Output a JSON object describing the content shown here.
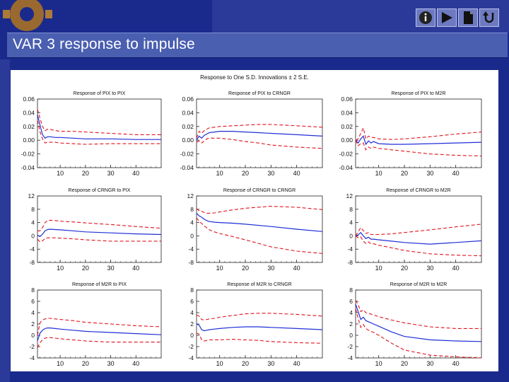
{
  "slide": {
    "title": "VAR 3 response to impulse",
    "nav_icons": [
      "info-icon",
      "play-icon",
      "document-icon",
      "return-icon"
    ],
    "colors": {
      "background": "#1a2a8c",
      "title_bar": "#4a5fb0",
      "response_line": "#1f2fd6",
      "band_line": "#e0141e"
    }
  },
  "chart_data": {
    "type": "line",
    "title": "Response to One S.D. Innovations ± 2 S.E.",
    "xticks": [
      "10",
      "20",
      "30",
      "40"
    ],
    "xlim": [
      1,
      50
    ],
    "panels": [
      {
        "title": "Response of PIX to PIX",
        "ylim": [
          -0.04,
          0.06
        ],
        "yticks": [
          "0.06",
          "0.04",
          "0.02",
          "0.00",
          "-0.02",
          "-0.04"
        ],
        "series": [
          {
            "role": "response",
            "x": [
              1,
              2,
              3,
              4,
              5,
              6,
              8,
              10,
              15,
              20,
              30,
              40,
              50
            ],
            "y": [
              0.037,
              0.022,
              0.008,
              0.003,
              0.005,
              0.005,
              0.004,
              0.004,
              0.003,
              0.002,
              0.002,
              0.001,
              0.001
            ]
          },
          {
            "role": "upper",
            "x": [
              1,
              2,
              3,
              4,
              5,
              6,
              8,
              10,
              15,
              20,
              30,
              40,
              50
            ],
            "y": [
              0.045,
              0.032,
              0.02,
              0.014,
              0.016,
              0.016,
              0.014,
              0.013,
              0.013,
              0.012,
              0.01,
              0.008,
              0.008
            ]
          },
          {
            "role": "lower",
            "x": [
              1,
              2,
              3,
              4,
              5,
              6,
              8,
              10,
              15,
              20,
              30,
              40,
              50
            ],
            "y": [
              0.029,
              0.012,
              0.002,
              -0.004,
              -0.003,
              -0.003,
              -0.003,
              -0.004,
              -0.005,
              -0.006,
              -0.005,
              -0.005,
              -0.005
            ]
          }
        ]
      },
      {
        "title": "Response of PIX to CRNGR",
        "ylim": [
          -0.04,
          0.06
        ],
        "yticks": [
          "0.06",
          "0.04",
          "0.02",
          "0.00",
          "-0.02",
          "-0.04"
        ],
        "series": [
          {
            "role": "response",
            "x": [
              1,
              2,
              3,
              4,
              5,
              6,
              8,
              10,
              15,
              20,
              25,
              30,
              40,
              50
            ],
            "y": [
              0.0,
              0.006,
              0.003,
              0.007,
              0.009,
              0.011,
              0.012,
              0.013,
              0.013,
              0.012,
              0.011,
              0.01,
              0.008,
              0.006
            ]
          },
          {
            "role": "upper",
            "x": [
              1,
              2,
              3,
              4,
              5,
              6,
              8,
              10,
              15,
              20,
              25,
              30,
              40,
              50
            ],
            "y": [
              0.003,
              0.013,
              0.01,
              0.014,
              0.016,
              0.018,
              0.019,
              0.02,
              0.021,
              0.022,
              0.023,
              0.023,
              0.021,
              0.019
            ]
          },
          {
            "role": "lower",
            "x": [
              1,
              2,
              3,
              4,
              5,
              6,
              8,
              10,
              15,
              20,
              25,
              30,
              40,
              50
            ],
            "y": [
              -0.003,
              -0.001,
              -0.004,
              -0.001,
              0.002,
              0.003,
              0.003,
              0.003,
              0.001,
              -0.002,
              -0.004,
              -0.007,
              -0.01,
              -0.012
            ]
          }
        ]
      },
      {
        "title": "Response of PIX to M2R",
        "ylim": [
          -0.04,
          0.06
        ],
        "yticks": [
          "0.06",
          "0.04",
          "0.02",
          "0.00",
          "-0.02",
          "-0.04"
        ],
        "series": [
          {
            "role": "response",
            "x": [
              1,
              2,
              3,
              4,
              5,
              6,
              7,
              8,
              10,
              15,
              20,
              30,
              40,
              50
            ],
            "y": [
              0.0,
              -0.004,
              0.002,
              0.006,
              -0.006,
              -0.001,
              -0.004,
              -0.002,
              -0.005,
              -0.006,
              -0.006,
              -0.005,
              -0.004,
              -0.003
            ]
          },
          {
            "role": "upper",
            "x": [
              1,
              2,
              3,
              4,
              5,
              6,
              7,
              8,
              10,
              15,
              20,
              30,
              40,
              50
            ],
            "y": [
              0.0,
              0.002,
              0.01,
              0.018,
              0.002,
              0.006,
              0.004,
              0.004,
              0.002,
              0.001,
              0.002,
              0.005,
              0.009,
              0.012
            ]
          },
          {
            "role": "lower",
            "x": [
              1,
              2,
              3,
              4,
              5,
              6,
              7,
              8,
              10,
              15,
              20,
              30,
              40,
              50
            ],
            "y": [
              0.0,
              -0.008,
              -0.005,
              -0.004,
              -0.014,
              -0.01,
              -0.012,
              -0.01,
              -0.012,
              -0.014,
              -0.016,
              -0.02,
              -0.022,
              -0.023
            ]
          }
        ]
      },
      {
        "title": "Response of CRNGR to PIX",
        "ylim": [
          -8,
          12
        ],
        "yticks": [
          "12",
          "8",
          "4",
          "0",
          "-4",
          "-8"
        ],
        "series": [
          {
            "role": "response",
            "x": [
              1,
              2,
              3,
              4,
              5,
              6,
              8,
              10,
              15,
              20,
              30,
              40,
              50
            ],
            "y": [
              0.2,
              -0.2,
              0.5,
              1.5,
              1.9,
              2.0,
              1.9,
              1.8,
              1.5,
              1.2,
              0.9,
              0.6,
              0.4
            ]
          },
          {
            "role": "upper",
            "x": [
              1,
              2,
              3,
              4,
              5,
              6,
              8,
              10,
              15,
              20,
              30,
              40,
              50
            ],
            "y": [
              1.5,
              1.5,
              2.5,
              4.0,
              4.6,
              4.7,
              4.6,
              4.4,
              4.2,
              3.9,
              3.4,
              2.8,
              2.3
            ]
          },
          {
            "role": "lower",
            "x": [
              1,
              2,
              3,
              4,
              5,
              6,
              8,
              10,
              15,
              20,
              30,
              40,
              50
            ],
            "y": [
              -1.0,
              -1.8,
              -1.5,
              -0.8,
              -0.6,
              -0.6,
              -0.6,
              -0.7,
              -0.9,
              -1.2,
              -1.6,
              -1.6,
              -1.6
            ]
          }
        ]
      },
      {
        "title": "Response of CRNGR to CRNGR",
        "ylim": [
          -8,
          12
        ],
        "yticks": [
          "12",
          "8",
          "4",
          "0",
          "-4",
          "-8"
        ],
        "series": [
          {
            "role": "response",
            "x": [
              1,
              2,
              3,
              4,
              5,
              6,
              8,
              10,
              15,
              20,
              30,
              40,
              50
            ],
            "y": [
              6.8,
              6.0,
              5.6,
              5.0,
              4.6,
              4.3,
              4.1,
              4.0,
              3.8,
              3.5,
              2.8,
              2.0,
              1.3
            ]
          },
          {
            "role": "upper",
            "x": [
              1,
              2,
              3,
              4,
              5,
              6,
              8,
              10,
              15,
              20,
              30,
              40,
              50
            ],
            "y": [
              8.2,
              7.6,
              7.4,
              7.0,
              6.8,
              6.8,
              6.9,
              7.2,
              7.8,
              8.3,
              8.9,
              8.6,
              7.9
            ]
          },
          {
            "role": "lower",
            "x": [
              1,
              2,
              3,
              4,
              5,
              6,
              8,
              10,
              15,
              20,
              30,
              40,
              50
            ],
            "y": [
              5.4,
              4.4,
              3.7,
              3.0,
              2.4,
              1.8,
              1.2,
              0.7,
              -0.2,
              -1.2,
              -3.3,
              -4.6,
              -5.3
            ]
          }
        ]
      },
      {
        "title": "Response of CRNGR to M2R",
        "ylim": [
          -8,
          12
        ],
        "yticks": [
          "12",
          "8",
          "4",
          "0",
          "-4",
          "-8"
        ],
        "series": [
          {
            "role": "response",
            "x": [
              1,
              2,
              3,
              4,
              5,
              6,
              7,
              8,
              10,
              15,
              20,
              30,
              40,
              50
            ],
            "y": [
              0.0,
              0.3,
              1.0,
              0.0,
              -0.8,
              -0.4,
              -1.0,
              -1.0,
              -1.2,
              -1.6,
              -2.0,
              -2.5,
              -2.0,
              -1.5
            ]
          },
          {
            "role": "upper",
            "x": [
              1,
              2,
              3,
              4,
              5,
              6,
              7,
              8,
              10,
              15,
              20,
              30,
              40,
              50
            ],
            "y": [
              0.0,
              1.2,
              2.5,
              1.6,
              0.7,
              1.0,
              0.4,
              0.4,
              0.4,
              0.6,
              1.0,
              1.8,
              2.7,
              3.5
            ]
          },
          {
            "role": "lower",
            "x": [
              1,
              2,
              3,
              4,
              5,
              6,
              7,
              8,
              10,
              15,
              20,
              30,
              40,
              50
            ],
            "y": [
              0.0,
              -0.6,
              -0.3,
              -1.6,
              -2.3,
              -1.8,
              -2.4,
              -2.4,
              -2.8,
              -3.6,
              -4.4,
              -5.4,
              -5.8,
              -6.0
            ]
          }
        ]
      },
      {
        "title": "Response of M2R to PIX",
        "ylim": [
          -4,
          8
        ],
        "yticks": [
          "8",
          "6",
          "4",
          "2",
          "0",
          "-2",
          "-4"
        ],
        "series": [
          {
            "role": "response",
            "x": [
              1,
              2,
              3,
              4,
              5,
              6,
              8,
              10,
              15,
              20,
              30,
              40,
              50
            ],
            "y": [
              -1.0,
              0.4,
              0.9,
              1.2,
              1.3,
              1.3,
              1.2,
              1.1,
              0.9,
              0.7,
              0.5,
              0.3,
              0.1
            ]
          },
          {
            "role": "upper",
            "x": [
              1,
              2,
              3,
              4,
              5,
              6,
              8,
              10,
              15,
              20,
              30,
              40,
              50
            ],
            "y": [
              0.0,
              2.2,
              2.7,
              2.9,
              3.0,
              3.0,
              2.9,
              2.8,
              2.6,
              2.3,
              2.0,
              1.7,
              1.5
            ]
          },
          {
            "role": "lower",
            "x": [
              1,
              2,
              3,
              4,
              5,
              6,
              8,
              10,
              15,
              20,
              30,
              40,
              50
            ],
            "y": [
              -2.2,
              -1.3,
              -0.8,
              -0.5,
              -0.4,
              -0.4,
              -0.5,
              -0.6,
              -0.8,
              -1.0,
              -1.2,
              -1.2,
              -1.2
            ]
          }
        ]
      },
      {
        "title": "Response of M2R to CRNGR",
        "ylim": [
          -4,
          8
        ],
        "yticks": [
          "8",
          "6",
          "4",
          "2",
          "0",
          "-2",
          "-4"
        ],
        "series": [
          {
            "role": "response",
            "x": [
              1,
              2,
              3,
              4,
              5,
              6,
              8,
              10,
              15,
              20,
              25,
              30,
              40,
              50
            ],
            "y": [
              2.0,
              1.8,
              1.0,
              0.8,
              0.9,
              1.0,
              1.1,
              1.2,
              1.4,
              1.5,
              1.5,
              1.4,
              1.2,
              1.0
            ]
          },
          {
            "role": "upper",
            "x": [
              1,
              2,
              3,
              4,
              5,
              6,
              8,
              10,
              15,
              20,
              25,
              30,
              40,
              50
            ],
            "y": [
              3.6,
              3.4,
              2.8,
              2.7,
              2.8,
              2.9,
              3.0,
              3.2,
              3.5,
              3.8,
              3.9,
              3.9,
              3.7,
              3.4
            ]
          },
          {
            "role": "lower",
            "x": [
              1,
              2,
              3,
              4,
              5,
              6,
              8,
              10,
              15,
              20,
              25,
              30,
              40,
              50
            ],
            "y": [
              0.4,
              0.2,
              -0.8,
              -1.0,
              -0.9,
              -0.8,
              -0.8,
              -0.8,
              -0.7,
              -0.8,
              -0.9,
              -1.1,
              -1.3,
              -1.4
            ]
          }
        ]
      },
      {
        "title": "Response of M2R to M2R",
        "ylim": [
          -4,
          8
        ],
        "yticks": [
          "8",
          "6",
          "4",
          "2",
          "0",
          "-2",
          "-4"
        ],
        "series": [
          {
            "role": "response",
            "x": [
              1,
              2,
              3,
              4,
              5,
              6,
              8,
              10,
              15,
              20,
              30,
              40,
              50
            ],
            "y": [
              5.5,
              4.2,
              2.8,
              3.2,
              2.6,
              2.4,
              2.0,
              1.6,
              0.6,
              -0.2,
              -0.8,
              -1.0,
              -1.1
            ]
          },
          {
            "role": "upper",
            "x": [
              1,
              2,
              3,
              4,
              5,
              6,
              8,
              10,
              15,
              20,
              30,
              40,
              50
            ],
            "y": [
              6.2,
              5.4,
              4.2,
              4.5,
              4.0,
              3.9,
              3.6,
              3.3,
              2.7,
              2.2,
              1.5,
              1.2,
              1.2
            ]
          },
          {
            "role": "lower",
            "x": [
              1,
              2,
              3,
              4,
              5,
              6,
              8,
              10,
              15,
              20,
              30,
              40,
              50
            ],
            "y": [
              4.7,
              3.0,
              1.4,
              1.9,
              1.2,
              0.9,
              0.5,
              0.0,
              -1.4,
              -2.6,
              -3.5,
              -3.8,
              -4.0
            ]
          }
        ]
      }
    ]
  }
}
